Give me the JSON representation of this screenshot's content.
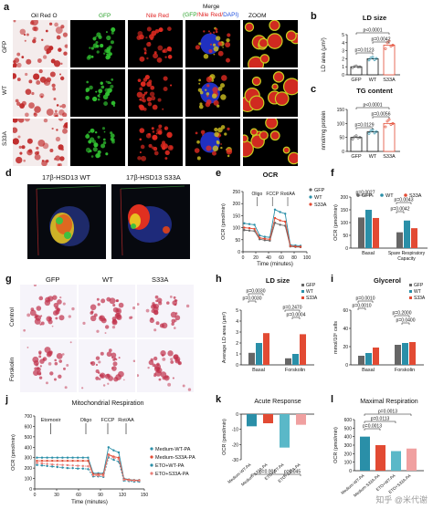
{
  "panel_a": {
    "letter": "a",
    "col_titles": [
      "Oil Red O",
      "GFP",
      "Nile Red"
    ],
    "merge_title_1": "Merge",
    "merge_title_2_a": "(GFP",
    "merge_title_2_b": "/Nile Red/",
    "merge_title_2_c": "DAPI)",
    "zoom_title": "ZOOM",
    "rows": [
      "GFP",
      "WT",
      "S33A"
    ]
  },
  "panel_b": {
    "letter": "b",
    "title": "LD size",
    "ylabel": "LD area (μm²)",
    "p_values": [
      "p<0.0001",
      "p=0.0042",
      "p=0.0123"
    ],
    "categories": [
      "GFP",
      "WT",
      "S33A"
    ]
  },
  "panel_c": {
    "letter": "c",
    "title": "TG content",
    "ylabel": "nmol/mg protein",
    "p_values": [
      "p<0.0001",
      "p=0.0056",
      "p=0.0129"
    ],
    "categories": [
      "GFP",
      "WT",
      "S33A"
    ]
  },
  "panel_d": {
    "letter": "d",
    "left_title": "17β-HSD13 WT",
    "right_title": "17β-HSD13 S33A"
  },
  "panel_e": {
    "letter": "e",
    "title": "OCR",
    "ylabel": "OCR (pmol/min)",
    "xlabel": "Time (minutes)",
    "legend": [
      "GFP",
      "WT",
      "S33A"
    ],
    "annotations": [
      "Oligo",
      "FCCP",
      "Rot/AA"
    ]
  },
  "panel_f": {
    "letter": "f",
    "ylabel": "OCR (pmol/min)",
    "legend": [
      "GFP",
      "WT",
      "S33A"
    ],
    "categories": [
      "Basal",
      "Spare Respiratory Capacity"
    ],
    "p_values": [
      "p=0.0027",
      "p=0.0043",
      "p=0.0042"
    ]
  },
  "panel_g": {
    "letter": "g",
    "col_titles": [
      "GFP",
      "WT",
      "S33A"
    ],
    "rows": [
      "Control",
      "Forskolin"
    ]
  },
  "panel_h": {
    "letter": "h",
    "title": "LD size",
    "ylabel": "Average LD area (μm²)",
    "legend": [
      "GFP",
      "WT",
      "S33A"
    ],
    "categories": [
      "Basal",
      "Forskolin"
    ],
    "p_values": [
      "p=0.0030",
      "p=0.0030",
      "p=0.2470",
      "p=0.0004"
    ]
  },
  "panel_i": {
    "letter": "i",
    "title": "Glycerol",
    "ylabel": "mmol/10⁶ cells",
    "legend": [
      "GFP",
      "WT",
      "S33A"
    ],
    "categories": [
      "Basal",
      "Forskolin"
    ],
    "p_values": [
      "p=0.0010",
      "p=0.0010",
      "p=0.2000",
      "p=0.0400"
    ]
  },
  "panel_j": {
    "letter": "j",
    "title": "Mitochondrial Respiration",
    "ylabel": "OCR (pmol/min)",
    "xlabel": "Time (minutes)",
    "annotations": [
      "Etomoxir",
      "Oligo",
      "FCCP",
      "Rot/AA"
    ],
    "legend": [
      "Medium-WT-PA",
      "Medium-S33A-PA",
      "ETO+WT-PA",
      "ETO+S33A-PA"
    ]
  },
  "panel_k": {
    "letter": "k",
    "title": "Acute Response",
    "ylabel": "OCR (pmol/min)",
    "p_values": [
      "p=0.001",
      "p=0.045"
    ],
    "categories": [
      "Medium-WT-PA",
      "Medium-S33A-PA",
      "ETO+WT-PA",
      "ETO+S33A-PA"
    ]
  },
  "panel_l": {
    "letter": "l",
    "title": "Maximal Respiration",
    "ylabel": "OCR (pmol/min)",
    "p_values": [
      "p=0.0013",
      "p=0.0113",
      "p=0.0013"
    ],
    "categories": [
      "Medium-WT-PA",
      "Medium-S33A-PA",
      "ETO+WT-PA",
      "ETO+S33A-PA"
    ]
  },
  "watermark": "知乎 @米代谢",
  "colors": {
    "gfp": "#666666",
    "wt": "#2a8fa8",
    "s33a": "#e24a33",
    "accent_red": "#e8554f"
  },
  "chart_data": [
    {
      "type": "bar",
      "id": "b",
      "title": "LD size",
      "ylabel": "LD area (μm²)",
      "categories": [
        "GFP",
        "WT",
        "S33A"
      ],
      "values": [
        1.0,
        2.0,
        3.7
      ],
      "ylim": [
        0,
        5
      ],
      "yticks": [
        "0",
        "1",
        "2",
        "3",
        "4",
        "5"
      ]
    },
    {
      "type": "bar",
      "id": "c",
      "title": "TG content",
      "ylabel": "nmol/mg protein",
      "categories": [
        "GFP",
        "WT",
        "S33A"
      ],
      "values": [
        50,
        70,
        100
      ],
      "ylim": [
        0,
        150
      ],
      "yticks": [
        "0",
        "50",
        "100",
        "150"
      ]
    },
    {
      "type": "line",
      "id": "e",
      "title": "OCR",
      "xlabel": "Time (minutes)",
      "ylabel": "OCR (pmol/min)",
      "xlim": [
        0,
        100
      ],
      "ylim": [
        0,
        250
      ],
      "xticks": [
        "0",
        "20",
        "40",
        "60",
        "80",
        "100"
      ],
      "yticks": [
        "0",
        "50",
        "100",
        "150",
        "200",
        "250"
      ],
      "x": [
        2,
        10,
        18,
        26,
        34,
        42,
        50,
        58,
        66,
        74,
        82,
        90
      ],
      "series": [
        {
          "name": "GFP",
          "values": [
            90,
            88,
            86,
            52,
            48,
            46,
            120,
            112,
            108,
            22,
            20,
            19
          ]
        },
        {
          "name": "WT",
          "values": [
            118,
            115,
            112,
            68,
            62,
            60,
            175,
            165,
            158,
            28,
            26,
            25
          ]
        },
        {
          "name": "S33A",
          "values": [
            100,
            98,
            95,
            58,
            54,
            52,
            140,
            130,
            125,
            24,
            22,
            21
          ]
        }
      ]
    },
    {
      "type": "bar",
      "id": "f",
      "ylabel": "OCR (pmol/min)",
      "categories": [
        "Basal",
        "Spare Respiratory Capacity"
      ],
      "ylim": [
        0,
        200
      ],
      "yticks": [
        "0",
        "50",
        "100",
        "150",
        "200"
      ],
      "series": [
        {
          "name": "GFP",
          "values": [
            120,
            62
          ]
        },
        {
          "name": "WT",
          "values": [
            150,
            108
          ]
        },
        {
          "name": "S33A",
          "values": [
            118,
            78
          ]
        }
      ]
    },
    {
      "type": "bar",
      "id": "h",
      "title": "LD size",
      "ylabel": "Average LD area (μm²)",
      "categories": [
        "Basal",
        "Forskolin"
      ],
      "ylim": [
        0,
        5
      ],
      "yticks": [
        "0",
        "1",
        "2",
        "3",
        "4",
        "5"
      ],
      "series": [
        {
          "name": "GFP",
          "values": [
            1.1,
            0.6
          ]
        },
        {
          "name": "WT",
          "values": [
            2.0,
            1.0
          ]
        },
        {
          "name": "S33A",
          "values": [
            2.9,
            2.8
          ]
        }
      ]
    },
    {
      "type": "bar",
      "id": "i",
      "title": "Glycerol",
      "ylabel": "mmol/10⁶ cells",
      "categories": [
        "Basal",
        "Forskolin"
      ],
      "ylim": [
        0,
        60
      ],
      "yticks": [
        "0",
        "20",
        "40",
        "60"
      ],
      "series": [
        {
          "name": "GFP",
          "values": [
            10,
            22
          ]
        },
        {
          "name": "WT",
          "values": [
            13,
            24
          ]
        },
        {
          "name": "S33A",
          "values": [
            19,
            25
          ]
        }
      ]
    },
    {
      "type": "line",
      "id": "j",
      "title": "Mitochondrial Respiration",
      "xlabel": "Time (minutes)",
      "ylabel": "OCR (pmol/min)",
      "xlim": [
        0,
        150
      ],
      "ylim": [
        0,
        700
      ],
      "xticks": [
        "0",
        "30",
        "60",
        "90",
        "120",
        "150"
      ],
      "yticks": [
        "0",
        "100",
        "200",
        "300",
        "400",
        "500",
        "600",
        "700"
      ],
      "x": [
        3,
        10,
        17,
        24,
        31,
        38,
        45,
        52,
        59,
        66,
        73,
        80,
        87,
        94,
        101,
        108,
        115,
        122,
        129,
        136,
        143
      ],
      "series": [
        {
          "name": "Medium-WT-PA",
          "values": [
            300,
            300,
            300,
            300,
            300,
            300,
            300,
            300,
            300,
            300,
            300,
            150,
            150,
            150,
            400,
            370,
            350,
            100,
            90,
            85,
            85
          ]
        },
        {
          "name": "Medium-S33A-PA",
          "values": [
            270,
            270,
            270,
            270,
            270,
            270,
            270,
            270,
            270,
            270,
            270,
            140,
            140,
            140,
            330,
            310,
            300,
            95,
            88,
            82,
            82
          ]
        },
        {
          "name": "ETO+WT-PA",
          "values": [
            230,
            225,
            220,
            215,
            210,
            205,
            200,
            200,
            195,
            195,
            190,
            120,
            120,
            115,
            300,
            280,
            260,
            80,
            75,
            70,
            70
          ]
        },
        {
          "name": "ETO+S33A-PA",
          "values": [
            250,
            245,
            240,
            235,
            232,
            230,
            228,
            225,
            222,
            220,
            218,
            130,
            128,
            125,
            320,
            300,
            285,
            88,
            82,
            78,
            78
          ]
        }
      ]
    },
    {
      "type": "bar",
      "id": "k",
      "title": "Acute Response",
      "ylabel": "OCR (pmol/min)",
      "categories": [
        "Medium-WT-PA",
        "Medium-S33A-PA",
        "ETO+WT-PA",
        "ETO+S33A-PA"
      ],
      "values": [
        -8,
        -6,
        -22,
        -7
      ],
      "ylim": [
        -30,
        0
      ],
      "yticks": [
        "0",
        "-10",
        "-20",
        "-30"
      ]
    },
    {
      "type": "bar",
      "id": "l",
      "title": "Maximal Respiration",
      "ylabel": "OCR (pmol/min)",
      "categories": [
        "Medium-WT-PA",
        "Medium-S33A-PA",
        "ETO+WT-PA",
        "ETO+S33A-PA"
      ],
      "values": [
        400,
        300,
        230,
        260
      ],
      "ylim": [
        0,
        600
      ],
      "yticks": [
        "0",
        "100",
        "200",
        "300",
        "400",
        "500",
        "600"
      ]
    }
  ]
}
